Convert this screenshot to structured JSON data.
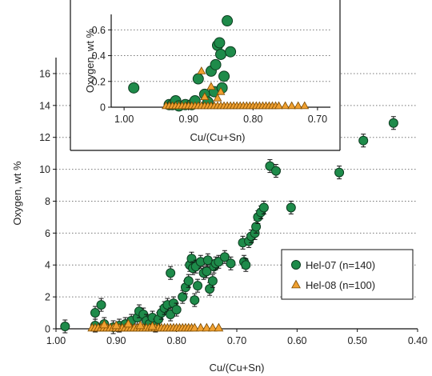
{
  "chart_data": [
    {
      "type": "scatter",
      "role": "main",
      "xlabel": "Cu/(Cu+Sn)",
      "ylabel": "Oxygen, wt %",
      "x_reversed": true,
      "xlim": [
        1.0,
        0.4
      ],
      "ylim": [
        0,
        17
      ],
      "xticks": [
        1.0,
        0.9,
        0.8,
        0.7,
        0.6,
        0.5,
        0.4
      ],
      "xtick_labels": [
        "1.00",
        "0.90",
        "0.80",
        "0.70",
        "0.60",
        "0.50",
        "0.40"
      ],
      "yticks": [
        0,
        2,
        4,
        6,
        8,
        10,
        12,
        14,
        16
      ],
      "ytick_labels": [
        "0",
        "2",
        "4",
        "6",
        "8",
        "10",
        "12",
        "14",
        "16"
      ],
      "grid": "horizontal-dotted",
      "legend_position": "right",
      "series": [
        {
          "name": "Hel-07 (n=140)",
          "marker": "circle",
          "color": "#1e8b4a",
          "error_bars": true,
          "points": [
            [
              0.985,
              0.15
            ],
            [
              0.935,
              1.0
            ],
            [
              0.925,
              1.5
            ],
            [
              0.935,
              0.2
            ],
            [
              0.92,
              0.3
            ],
            [
              0.905,
              0.1
            ],
            [
              0.895,
              0.2
            ],
            [
              0.885,
              0.3
            ],
            [
              0.875,
              0.5
            ],
            [
              0.865,
              0.7
            ],
            [
              0.862,
              1.1
            ],
            [
              0.855,
              0.9
            ],
            [
              0.85,
              0.5
            ],
            [
              0.845,
              0.3
            ],
            [
              0.84,
              0.7
            ],
            [
              0.835,
              0.2
            ],
            [
              0.83,
              0.6
            ],
            [
              0.825,
              1.0
            ],
            [
              0.82,
              1.3
            ],
            [
              0.815,
              1.5
            ],
            [
              0.81,
              0.9
            ],
            [
              0.805,
              1.6
            ],
            [
              0.8,
              1.2
            ],
            [
              0.81,
              3.5
            ],
            [
              0.79,
              2.0
            ],
            [
              0.785,
              2.6
            ],
            [
              0.78,
              3.0
            ],
            [
              0.778,
              4.0
            ],
            [
              0.775,
              4.4
            ],
            [
              0.773,
              3.8
            ],
            [
              0.77,
              1.8
            ],
            [
              0.768,
              3.9
            ],
            [
              0.765,
              2.7
            ],
            [
              0.76,
              4.2
            ],
            [
              0.755,
              3.5
            ],
            [
              0.75,
              3.6
            ],
            [
              0.748,
              4.3
            ],
            [
              0.745,
              2.5
            ],
            [
              0.74,
              3.0
            ],
            [
              0.738,
              3.9
            ],
            [
              0.735,
              4.1
            ],
            [
              0.73,
              4.2
            ],
            [
              0.72,
              4.5
            ],
            [
              0.71,
              4.1
            ],
            [
              0.69,
              5.4
            ],
            [
              0.688,
              4.2
            ],
            [
              0.685,
              4.0
            ],
            [
              0.68,
              5.5
            ],
            [
              0.676,
              5.8
            ],
            [
              0.67,
              6.0
            ],
            [
              0.668,
              6.4
            ],
            [
              0.665,
              7.0
            ],
            [
              0.66,
              7.3
            ],
            [
              0.655,
              7.6
            ],
            [
              0.645,
              10.2
            ],
            [
              0.635,
              9.9
            ],
            [
              0.61,
              7.6
            ],
            [
              0.53,
              9.8
            ],
            [
              0.49,
              11.8
            ],
            [
              0.44,
              12.9
            ]
          ]
        },
        {
          "name": "Hel-08 (n=100)",
          "marker": "triangle",
          "color": "#f0a030",
          "error_bars": false,
          "points": [
            [
              0.94,
              0.05
            ],
            [
              0.935,
              0.05
            ],
            [
              0.93,
              0.05
            ],
            [
              0.925,
              0.05
            ],
            [
              0.92,
              0.05
            ],
            [
              0.915,
              0.05
            ],
            [
              0.91,
              0.05
            ],
            [
              0.905,
              0.05
            ],
            [
              0.9,
              0.05
            ],
            [
              0.895,
              0.05
            ],
            [
              0.89,
              0.05
            ],
            [
              0.885,
              0.05
            ],
            [
              0.88,
              0.05
            ],
            [
              0.875,
              0.05
            ],
            [
              0.87,
              0.05
            ],
            [
              0.865,
              0.05
            ],
            [
              0.86,
              0.05
            ],
            [
              0.855,
              0.05
            ],
            [
              0.85,
              0.05
            ],
            [
              0.845,
              0.05
            ],
            [
              0.84,
              0.05
            ],
            [
              0.835,
              0.05
            ],
            [
              0.83,
              0.05
            ],
            [
              0.825,
              0.05
            ],
            [
              0.82,
              0.05
            ],
            [
              0.815,
              0.05
            ],
            [
              0.81,
              0.05
            ],
            [
              0.805,
              0.05
            ],
            [
              0.8,
              0.05
            ],
            [
              0.795,
              0.05
            ],
            [
              0.79,
              0.05
            ],
            [
              0.785,
              0.05
            ],
            [
              0.78,
              0.05
            ],
            [
              0.775,
              0.05
            ],
            [
              0.77,
              0.05
            ],
            [
              0.76,
              0.05
            ],
            [
              0.75,
              0.05
            ],
            [
              0.74,
              0.05
            ],
            [
              0.73,
              0.05
            ],
            [
              0.92,
              0.25
            ],
            [
              0.9,
              0.2
            ],
            [
              0.88,
              0.3
            ],
            [
              0.86,
              0.2
            ],
            [
              0.84,
              0.15
            ]
          ]
        }
      ]
    },
    {
      "type": "scatter",
      "role": "inset",
      "xlabel": "Cu/(Cu+Sn)",
      "ylabel": "Oxygen, wt %",
      "x_reversed": true,
      "xlim": [
        1.02,
        0.68
      ],
      "ylim": [
        0,
        0.72
      ],
      "xticks": [
        1.0,
        0.9,
        0.8,
        0.7
      ],
      "xtick_labels": [
        "1.00",
        "0.90",
        "0.80",
        "0.70"
      ],
      "yticks": [
        0,
        0.2,
        0.4,
        0.6
      ],
      "ytick_labels": [
        "0",
        "0.2",
        "0.4",
        "0.6"
      ],
      "grid": "horizontal-dotted",
      "series": [
        {
          "name": "Hel-07 (n=140)",
          "marker": "circle",
          "color": "#1e8b4a",
          "points": [
            [
              0.985,
              0.15
            ],
            [
              0.93,
              0.02
            ],
            [
              0.925,
              0.02
            ],
            [
              0.92,
              0.05
            ],
            [
              0.915,
              0.01
            ],
            [
              0.905,
              0.02
            ],
            [
              0.895,
              0.02
            ],
            [
              0.89,
              0.05
            ],
            [
              0.885,
              0.22
            ],
            [
              0.875,
              0.1
            ],
            [
              0.87,
              0.04
            ],
            [
              0.865,
              0.28
            ],
            [
              0.86,
              0.12
            ],
            [
              0.858,
              0.33
            ],
            [
              0.855,
              0.48
            ],
            [
              0.852,
              0.5
            ],
            [
              0.85,
              0.41
            ],
            [
              0.848,
              0.15
            ],
            [
              0.845,
              0.24
            ],
            [
              0.84,
              0.67
            ],
            [
              0.835,
              0.43
            ]
          ]
        },
        {
          "name": "Hel-08 (n=100)",
          "marker": "triangle",
          "color": "#f0a030",
          "points": [
            [
              0.935,
              0.01
            ],
            [
              0.93,
              0.01
            ],
            [
              0.925,
              0.01
            ],
            [
              0.92,
              0.01
            ],
            [
              0.915,
              0.01
            ],
            [
              0.91,
              0.01
            ],
            [
              0.905,
              0.01
            ],
            [
              0.9,
              0.01
            ],
            [
              0.895,
              0.01
            ],
            [
              0.89,
              0.01
            ],
            [
              0.885,
              0.01
            ],
            [
              0.88,
              0.01
            ],
            [
              0.875,
              0.01
            ],
            [
              0.87,
              0.01
            ],
            [
              0.865,
              0.01
            ],
            [
              0.86,
              0.01
            ],
            [
              0.855,
              0.01
            ],
            [
              0.85,
              0.01
            ],
            [
              0.845,
              0.01
            ],
            [
              0.84,
              0.01
            ],
            [
              0.835,
              0.01
            ],
            [
              0.83,
              0.01
            ],
            [
              0.825,
              0.01
            ],
            [
              0.82,
              0.01
            ],
            [
              0.815,
              0.01
            ],
            [
              0.81,
              0.01
            ],
            [
              0.805,
              0.01
            ],
            [
              0.8,
              0.01
            ],
            [
              0.795,
              0.01
            ],
            [
              0.79,
              0.01
            ],
            [
              0.785,
              0.01
            ],
            [
              0.78,
              0.01
            ],
            [
              0.775,
              0.01
            ],
            [
              0.77,
              0.01
            ],
            [
              0.765,
              0.01
            ],
            [
              0.76,
              0.01
            ],
            [
              0.75,
              0.01
            ],
            [
              0.74,
              0.01
            ],
            [
              0.73,
              0.01
            ],
            [
              0.72,
              0.01
            ],
            [
              0.88,
              0.28
            ],
            [
              0.865,
              0.16
            ],
            [
              0.875,
              0.08
            ],
            [
              0.85,
              0.12
            ],
            [
              0.855,
              0.07
            ]
          ]
        }
      ]
    }
  ]
}
